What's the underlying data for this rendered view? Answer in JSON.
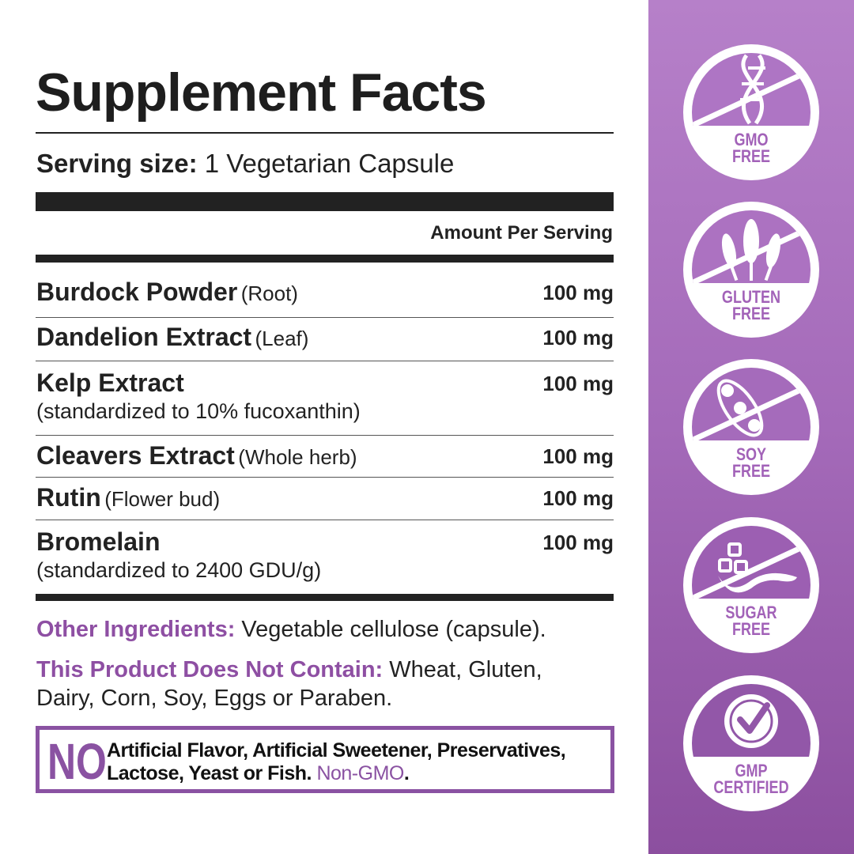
{
  "title": "Supplement Facts",
  "serving": {
    "label": "Serving size:",
    "value": "1 Vegetarian Capsule"
  },
  "amount_header": "Amount Per Serving",
  "ingredients": [
    {
      "name": "Burdock Powder",
      "qualifier": "(Root)",
      "amount": "100 mg"
    },
    {
      "name": "Dandelion Extract",
      "qualifier": "(Leaf)",
      "amount": "100 mg"
    },
    {
      "name": "Kelp Extract",
      "sub": "(standardized to 10% fucoxanthin)",
      "amount": "100 mg"
    },
    {
      "name": "Cleavers Extract",
      "qualifier": "(Whole herb)",
      "amount": "100 mg"
    },
    {
      "name": "Rutin",
      "qualifier": "(Flower bud)",
      "amount": "100 mg"
    },
    {
      "name": "Bromelain",
      "sub": "(standardized to 2400 GDU/g)",
      "amount": "100 mg"
    }
  ],
  "other": {
    "label": "Other Ingredients:",
    "text": "Vegetable cellulose (capsule)."
  },
  "not_contain": {
    "label": "This Product Does Not Contain:",
    "text": "Wheat, Gluten, Dairy, Corn, Soy, Eggs or Paraben."
  },
  "no_box": {
    "big": "NO",
    "text": "Artificial Flavor, Artificial Sweetener, Preservatives, Lactose, Yeast or Fish.",
    "highlight": "Non-GMO",
    "end": "."
  },
  "badges": [
    {
      "line1": "GMO",
      "line2": "FREE",
      "icon": "dna-icon"
    },
    {
      "line1": "GLUTEN",
      "line2": "FREE",
      "icon": "wheat-icon"
    },
    {
      "line1": "SOY",
      "line2": "FREE",
      "icon": "soybean-icon"
    },
    {
      "line1": "SUGAR",
      "line2": "FREE",
      "icon": "sugar-spoon-icon"
    },
    {
      "line1": "GMP",
      "line2": "CERTIFIED",
      "icon": "certified-check-icon"
    }
  ],
  "colors": {
    "accent": "#8e4fa3",
    "panel_top": "#b680c9",
    "panel_bottom": "#8c4f9f",
    "text": "#222222"
  }
}
